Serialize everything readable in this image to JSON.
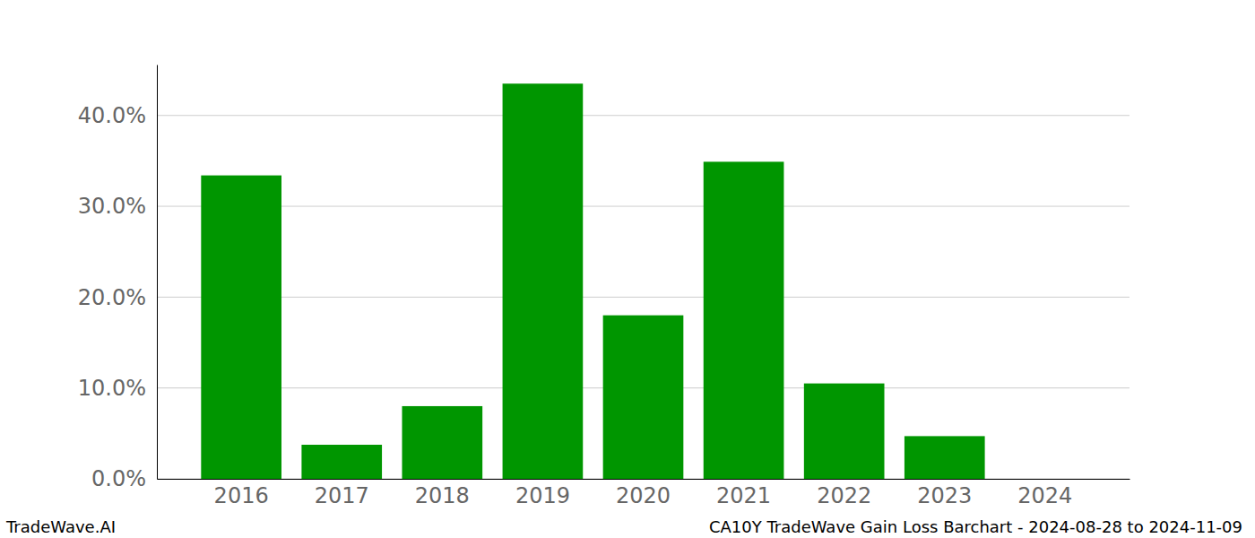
{
  "chart_data": {
    "type": "bar",
    "title": "CA10Y TradeWave Gain Loss Barchart - 2024-08-28 to 2024-11-09",
    "annotations": [
      "TradeWave.AI"
    ],
    "categories": [
      "2016",
      "2017",
      "2018",
      "2019",
      "2020",
      "2021",
      "2022",
      "2023",
      "2024"
    ],
    "values": [
      33.4,
      3.75,
      8.0,
      43.5,
      18.0,
      34.9,
      10.5,
      4.7,
      0
    ],
    "color": "#009600",
    "ylim": [
      0,
      45.6
    ],
    "yticks": [
      {
        "value": 0,
        "label": "0.0%"
      },
      {
        "value": 10,
        "label": "10.0%"
      },
      {
        "value": 20,
        "label": "20.0%"
      },
      {
        "value": 30,
        "label": "30.0%"
      },
      {
        "value": 40,
        "label": "40.0%"
      }
    ],
    "grid": true
  }
}
